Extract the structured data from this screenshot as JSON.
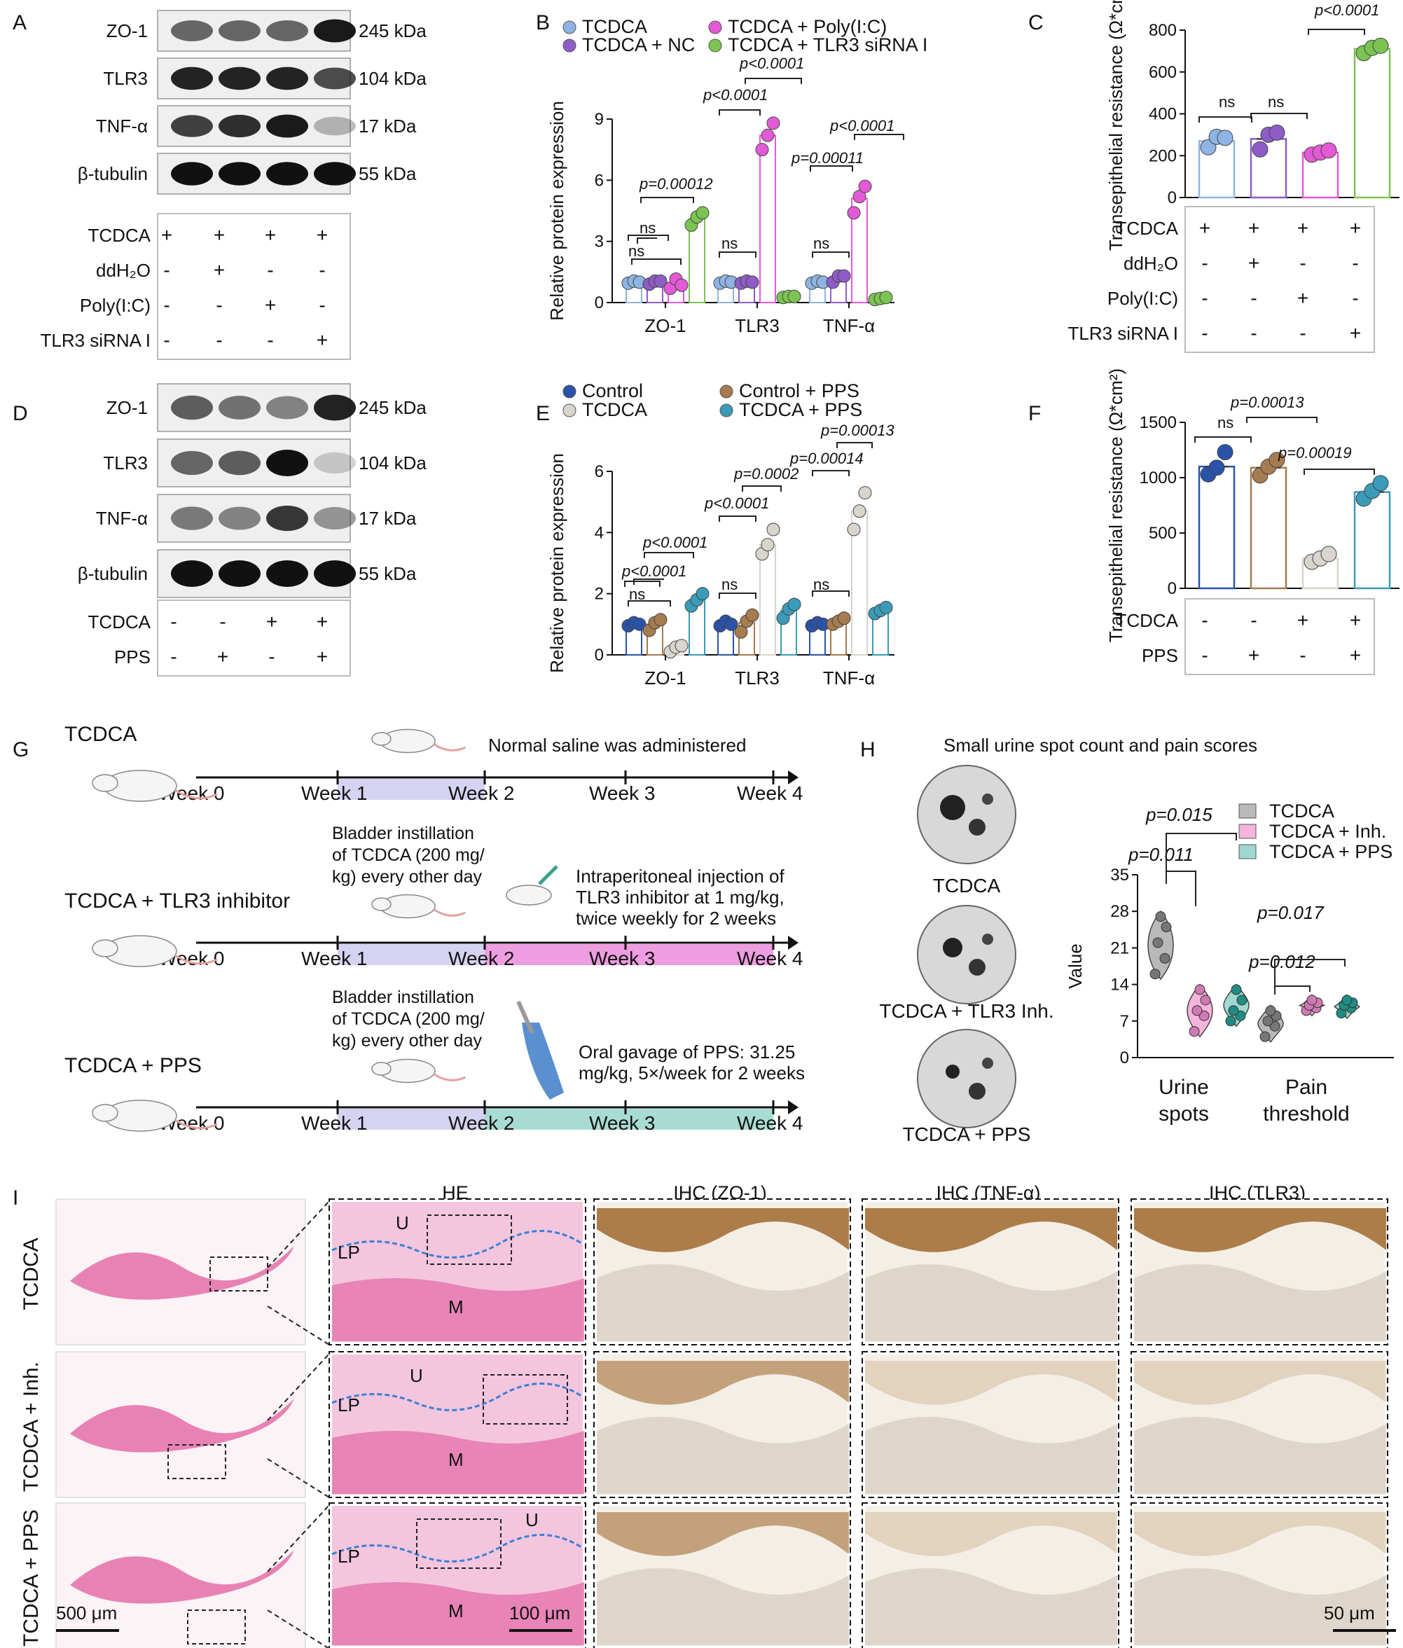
{
  "palette": {
    "tcdca": "#8fb4e3",
    "nc": "#8e5cc7",
    "polyic": "#e25ad6",
    "siRNA": "#7cc451",
    "control": "#2a52a8",
    "tcdca_e": "#d9d4cc",
    "control_pps": "#a67b4f",
    "tcdca_pps": "#3a9bb8",
    "h_tcdca": "#b9b9b9",
    "h_inh": "#f4b4dc",
    "h_pps": "#9fd8cf",
    "pink_text": "#d4159e",
    "teal_text": "#12928b",
    "lavender": "#b9b6e8",
    "lavender_text": "#6b62c4",
    "magenta_bar": "#ee9de0",
    "teal_bar": "#a8dcd3",
    "brown_text": "#5a2a1c",
    "he_pink": "#e46da8",
    "ihc_brown": "#9a6020"
  },
  "panels": {
    "A": {
      "letter": "A",
      "bands": [
        {
          "name": "ZO-1",
          "kda": "245 kDa"
        },
        {
          "name": "TLR3",
          "kda": "104 kDa"
        },
        {
          "name": "TNF-α",
          "kda": "17 kDa"
        },
        {
          "name": "β-tubulin",
          "kda": "55 kDa"
        }
      ],
      "treatments": [
        {
          "label": "TCDCA",
          "signs": [
            "+",
            "+",
            "+",
            "+"
          ]
        },
        {
          "label": "ddH₂O",
          "signs": [
            "-",
            "+",
            "-",
            "-"
          ]
        },
        {
          "label": "Poly(I:C)",
          "signs": [
            "-",
            "-",
            "+",
            "-"
          ]
        },
        {
          "label": "TLR3 siRNA I",
          "signs": [
            "-",
            "-",
            "-",
            "+"
          ]
        }
      ]
    },
    "B": {
      "letter": "B",
      "legend": [
        "TCDCA",
        "TCDCA + NC",
        "TCDCA + Poly(I:C)",
        "TCDCA + TLR3 siRNA I"
      ],
      "annotations": {
        "ns": "ns",
        "p1": "p=0.00012",
        "p2": "p<0.0001",
        "p3": "p<0.0001",
        "p4": "p=0.00011",
        "p5": "p<0.0001"
      }
    },
    "C": {
      "letter": "C",
      "treatments": [
        {
          "label": "TCDCA",
          "signs": [
            "+",
            "+",
            "+",
            "+"
          ]
        },
        {
          "label": "ddH₂O",
          "signs": [
            "-",
            "+",
            "-",
            "-"
          ]
        },
        {
          "label": "Poly(I:C)",
          "signs": [
            "-",
            "-",
            "+",
            "-"
          ]
        },
        {
          "label": "TLR3 siRNA I",
          "signs": [
            "-",
            "-",
            "-",
            "+"
          ]
        }
      ],
      "annotations": {
        "ns1": "ns",
        "ns2": "ns",
        "p": "p<0.0001"
      }
    },
    "D": {
      "letter": "D",
      "bands": [
        {
          "name": "ZO-1",
          "kda": "245 kDa"
        },
        {
          "name": "TLR3",
          "kda": "104 kDa"
        },
        {
          "name": "TNF-α",
          "kda": "17 kDa"
        },
        {
          "name": "β-tubulin",
          "kda": "55 kDa"
        }
      ],
      "treatments": [
        {
          "label": "TCDCA",
          "signs": [
            "-",
            "-",
            "+",
            "+"
          ]
        },
        {
          "label": "PPS",
          "signs": [
            "-",
            "+",
            "-",
            "+"
          ]
        }
      ]
    },
    "E": {
      "letter": "E",
      "legend": [
        "Control",
        "TCDCA",
        "Control + PPS",
        "TCDCA + PPS"
      ],
      "annotations": {
        "p1": "p<0.0001",
        "p2": "p<0.0001",
        "p3": "p<0.0001",
        "p4": "p=0.0002",
        "p5": "p=0.00014",
        "p6": "p=0.00013",
        "ns": "ns"
      }
    },
    "F": {
      "letter": "F",
      "treatments": [
        {
          "label": "TCDCA",
          "signs": [
            "-",
            "-",
            "+",
            "+"
          ]
        },
        {
          "label": "PPS",
          "signs": [
            "-",
            "+",
            "-",
            "+"
          ]
        }
      ],
      "annotations": {
        "ns": "ns",
        "p1": "p=0.00013",
        "p2": "p=0.00019"
      }
    },
    "G": {
      "letter": "G",
      "rows": [
        {
          "group": "TCDCA",
          "weeks": [
            "Week 0",
            "Week 1",
            "Week 2",
            "Week 3",
            "Week 4"
          ],
          "note": "Normal saline was administered"
        },
        {
          "group": "TCDCA + TLR3 inhibitor",
          "weeks": [
            "Week 0",
            "Week 1",
            "Week 2",
            "Week 3",
            "Week 4"
          ],
          "instill": [
            "Bladder instillation",
            "of TCDCA (200 mg/",
            "kg) every other day"
          ],
          "note": [
            "Intraperitoneal injection of",
            "TLR3 inhibitor at 1 mg/kg,",
            "twice weekly for 2 weeks"
          ]
        },
        {
          "group": "TCDCA + PPS",
          "weeks": [
            "Week 0",
            "Week 1",
            "Week 2",
            "Week 3",
            "Week 4"
          ],
          "instill": [
            "Bladder instillation",
            "of TCDCA (200 mg/",
            "kg) every other day"
          ],
          "note": [
            "Oral gavage of PPS: 31.25",
            "mg/kg, 5×/week for 2 weeks"
          ]
        }
      ]
    },
    "H": {
      "letter": "H",
      "title": "Small urine spot count and pain scores",
      "spots": [
        "TCDCA",
        "TCDCA + TLR3 Inh.",
        "TCDCA + PPS"
      ],
      "legend": [
        "TCDCA",
        "TCDCA + Inh.",
        "TCDCA + PPS"
      ],
      "annotations": {
        "p1": "p=0.015",
        "p2": "p=0.011",
        "p3": "p=0.017",
        "p4": "p=0.012"
      }
    },
    "I": {
      "letter": "I",
      "columns": [
        "HE",
        "IHC (ZO-1)",
        "IHC (TNF-α)",
        "IHC (TLR3)"
      ],
      "rows": [
        "TCDCA",
        "TCDCA + Inh.",
        "TCDCA + PPS"
      ],
      "labels": {
        "U": "U",
        "LP": "LP",
        "M": "M"
      },
      "scalebars": [
        "500 μm",
        "100 μm",
        "50 μm"
      ]
    }
  },
  "chart_data": [
    {
      "panel": "B",
      "type": "bar",
      "ylabel": "Relative protein expression",
      "ylim": [
        0,
        9
      ],
      "yticks": [
        0,
        3,
        6,
        9
      ],
      "categories": [
        "ZO-1",
        "TLR3",
        "TNF-α"
      ],
      "series": [
        {
          "name": "TCDCA",
          "values": [
            1.0,
            1.0,
            1.0
          ],
          "points": [
            [
              0.95,
              1.05,
              1.0
            ],
            [
              0.95,
              1.05,
              1.0
            ],
            [
              0.95,
              1.05,
              1.0
            ]
          ]
        },
        {
          "name": "TCDCA + NC",
          "values": [
            1.0,
            1.0,
            1.2
          ],
          "points": [
            [
              0.9,
              1.05,
              1.05
            ],
            [
              0.95,
              1.05,
              1.0
            ],
            [
              1.0,
              1.3,
              1.3
            ]
          ]
        },
        {
          "name": "TCDCA + Poly(I:C)",
          "values": [
            0.9,
            8.2,
            5.1
          ],
          "points": [
            [
              0.7,
              1.15,
              0.85
            ],
            [
              7.5,
              8.2,
              8.8
            ],
            [
              4.4,
              5.2,
              5.7
            ]
          ]
        },
        {
          "name": "TCDCA + TLR3 siRNA I",
          "values": [
            4.1,
            0.3,
            0.2
          ],
          "points": [
            [
              3.8,
              4.2,
              4.4
            ],
            [
              0.25,
              0.3,
              0.3
            ],
            [
              0.15,
              0.2,
              0.25
            ]
          ]
        }
      ]
    },
    {
      "panel": "C",
      "type": "bar",
      "ylabel": "Transepithelial resistance (Ω*cm²)",
      "ylim": [
        0,
        800
      ],
      "yticks": [
        0,
        200,
        400,
        600,
        800
      ],
      "categories": [
        "1",
        "2",
        "3",
        "4"
      ],
      "values": [
        270,
        280,
        215,
        710
      ],
      "points": [
        [
          240,
          290,
          285
        ],
        [
          230,
          300,
          310
        ],
        [
          205,
          215,
          225
        ],
        [
          690,
          715,
          725
        ]
      ]
    },
    {
      "panel": "E",
      "type": "bar",
      "ylabel": "Relative protein expression",
      "ylim": [
        0,
        6
      ],
      "yticks": [
        0,
        2,
        4,
        6
      ],
      "categories": [
        "ZO-1",
        "TLR3",
        "TNF-α"
      ],
      "series": [
        {
          "name": "Control",
          "values": [
            1.0,
            1.0,
            1.0
          ],
          "points": [
            [
              0.95,
              1.05,
              1.0
            ],
            [
              0.95,
              1.1,
              1.0
            ],
            [
              0.95,
              1.05,
              1.0
            ]
          ]
        },
        {
          "name": "Control + PPS",
          "values": [
            1.0,
            1.05,
            1.1
          ],
          "points": [
            [
              0.8,
              1.05,
              1.15
            ],
            [
              0.75,
              1.1,
              1.3
            ],
            [
              1.0,
              1.1,
              1.2
            ]
          ]
        },
        {
          "name": "TCDCA",
          "values": [
            0.2,
            3.6,
            4.7
          ],
          "points": [
            [
              0.1,
              0.25,
              0.3
            ],
            [
              3.3,
              3.6,
              4.1
            ],
            [
              4.1,
              4.7,
              5.3
            ]
          ]
        },
        {
          "name": "TCDCA + PPS",
          "values": [
            1.8,
            1.45,
            1.45
          ],
          "points": [
            [
              1.6,
              1.8,
              2.0
            ],
            [
              1.2,
              1.5,
              1.65
            ],
            [
              1.35,
              1.45,
              1.55
            ]
          ]
        }
      ]
    },
    {
      "panel": "F",
      "type": "bar",
      "ylabel": "Transepithelial resistance (Ω*cm²)",
      "ylim": [
        0,
        1500
      ],
      "yticks": [
        0,
        500,
        1000,
        1500
      ],
      "categories": [
        "1",
        "2",
        "3",
        "4"
      ],
      "values": [
        1100,
        1090,
        270,
        870
      ],
      "points": [
        [
          1030,
          1090,
          1230
        ],
        [
          1020,
          1100,
          1160
        ],
        [
          240,
          270,
          310
        ],
        [
          810,
          880,
          950
        ]
      ]
    },
    {
      "panel": "H",
      "type": "violin",
      "ylabel": "Value",
      "ylim": [
        0,
        35
      ],
      "yticks": [
        0,
        7,
        14,
        21,
        28,
        35
      ],
      "categories": [
        "Urine spots",
        "Pain threshold"
      ],
      "series": [
        {
          "name": "TCDCA",
          "points": [
            [
              16,
              19,
              22,
              25,
              27
            ],
            [
              4,
              6,
              7,
              8,
              9
            ]
          ]
        },
        {
          "name": "TCDCA + Inh.",
          "points": [
            [
              5,
              8,
              9,
              11,
              13
            ],
            [
              9,
              9.5,
              10,
              10.5,
              11
            ]
          ]
        },
        {
          "name": "TCDCA + PPS",
          "points": [
            [
              7,
              8,
              9,
              11,
              13
            ],
            [
              8.5,
              9.5,
              10,
              10.5,
              11
            ]
          ]
        }
      ]
    }
  ]
}
